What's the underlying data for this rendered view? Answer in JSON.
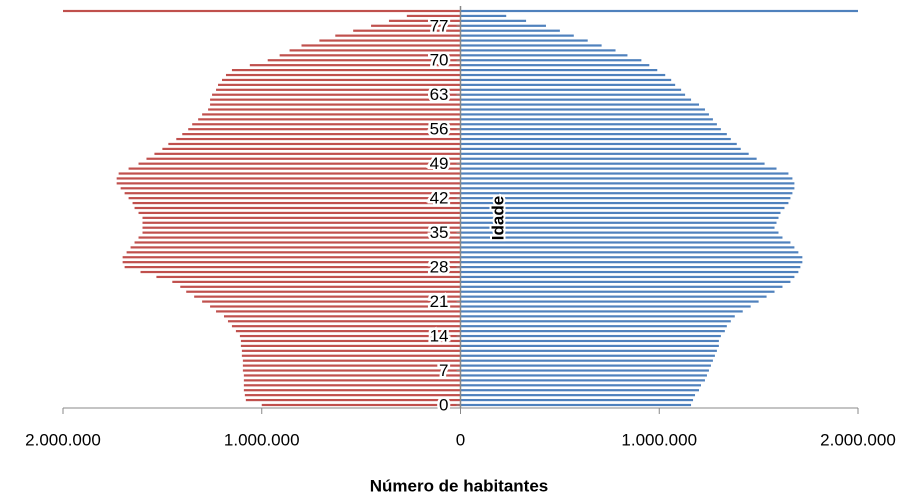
{
  "chart_data": {
    "type": "pyramid",
    "xlabel": "Número de habitantes",
    "ylabel": "Idade",
    "categories": [
      "0",
      null,
      null,
      null,
      null,
      null,
      null,
      "7",
      null,
      null,
      null,
      null,
      null,
      null,
      "14",
      null,
      null,
      null,
      null,
      null,
      null,
      "21",
      null,
      null,
      null,
      null,
      null,
      null,
      "28",
      null,
      null,
      null,
      null,
      null,
      null,
      "35",
      null,
      null,
      null,
      null,
      null,
      null,
      "42",
      null,
      null,
      null,
      null,
      null,
      null,
      "49",
      null,
      null,
      null,
      null,
      null,
      null,
      "56",
      null,
      null,
      null,
      null,
      null,
      null,
      "63",
      null,
      null,
      null,
      null,
      null,
      null,
      "70",
      null,
      null,
      null,
      null,
      null,
      null,
      "77",
      null,
      null,
      null
    ],
    "series": [
      {
        "color": "#c0504d",
        "values": [
          -1000000,
          -1080000,
          -1085000,
          -1090000,
          -1090000,
          -1090000,
          -1090000,
          -1095000,
          -1095000,
          -1095000,
          -1100000,
          -1100000,
          -1105000,
          -1105000,
          -1110000,
          -1130000,
          -1150000,
          -1170000,
          -1190000,
          -1230000,
          -1260000,
          -1300000,
          -1340000,
          -1380000,
          -1410000,
          -1450000,
          -1530000,
          -1610000,
          -1690000,
          -1700000,
          -1700000,
          -1680000,
          -1660000,
          -1640000,
          -1620000,
          -1600000,
          -1600000,
          -1600000,
          -1600000,
          -1620000,
          -1640000,
          -1650000,
          -1670000,
          -1690000,
          -1710000,
          -1730000,
          -1730000,
          -1720000,
          -1670000,
          -1620000,
          -1580000,
          -1540000,
          -1500000,
          -1470000,
          -1430000,
          -1400000,
          -1370000,
          -1350000,
          -1320000,
          -1300000,
          -1270000,
          -1260000,
          -1260000,
          -1250000,
          -1230000,
          -1220000,
          -1200000,
          -1180000,
          -1150000,
          -1060000,
          -970000,
          -910000,
          -860000,
          -800000,
          -710000,
          -630000,
          -540000,
          -450000,
          -360000,
          -270000,
          -2000000
        ]
      },
      {
        "color": "#4f81bd",
        "values": [
          1160000,
          1170000,
          1180000,
          1200000,
          1210000,
          1230000,
          1240000,
          1250000,
          1260000,
          1270000,
          1280000,
          1290000,
          1300000,
          1300000,
          1310000,
          1330000,
          1340000,
          1360000,
          1380000,
          1420000,
          1460000,
          1500000,
          1540000,
          1580000,
          1620000,
          1660000,
          1680000,
          1700000,
          1710000,
          1720000,
          1720000,
          1700000,
          1680000,
          1660000,
          1620000,
          1600000,
          1580000,
          1590000,
          1600000,
          1610000,
          1630000,
          1650000,
          1660000,
          1670000,
          1680000,
          1680000,
          1670000,
          1650000,
          1590000,
          1530000,
          1490000,
          1450000,
          1410000,
          1390000,
          1360000,
          1340000,
          1310000,
          1290000,
          1270000,
          1250000,
          1230000,
          1200000,
          1160000,
          1130000,
          1110000,
          1080000,
          1060000,
          1030000,
          990000,
          950000,
          910000,
          840000,
          780000,
          710000,
          640000,
          570000,
          500000,
          430000,
          330000,
          230000,
          2000000
        ]
      }
    ],
    "xlim": [
      -2000000,
      2000000
    ],
    "xticks": [
      {
        "value": -2000000,
        "label": "2.000.000"
      },
      {
        "value": -1000000,
        "label": "1.000.000"
      },
      0,
      {
        "value": 1000000,
        "label": "1.000.000"
      },
      {
        "value": 2000000,
        "label": "2.000.000"
      }
    ]
  }
}
